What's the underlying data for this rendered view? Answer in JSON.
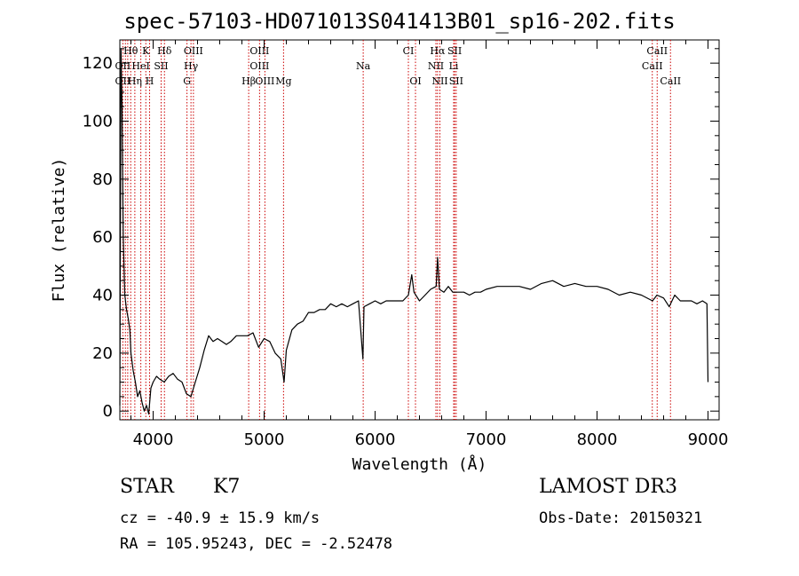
{
  "title": "spec-57103-HD071013S041413B01_sp16-202.fits",
  "chart_data": {
    "type": "line",
    "title": "spec-57103-HD071013S041413B01_sp16-202.fits",
    "xlabel": "Wavelength (Å)",
    "ylabel": "Flux (relative)",
    "xlim": [
      3700,
      9100
    ],
    "ylim": [
      -3,
      128
    ],
    "xticks": [
      4000,
      5000,
      6000,
      7000,
      8000,
      9000
    ],
    "yticks": [
      0,
      20,
      40,
      60,
      80,
      100,
      120
    ],
    "series": [
      {
        "name": "spectrum",
        "x": [
          3700,
          3710,
          3720,
          3730,
          3745,
          3760,
          3775,
          3790,
          3800,
          3820,
          3840,
          3860,
          3880,
          3900,
          3920,
          3940,
          3960,
          3980,
          4000,
          4030,
          4060,
          4100,
          4140,
          4180,
          4220,
          4260,
          4300,
          4340,
          4380,
          4420,
          4460,
          4500,
          4540,
          4580,
          4620,
          4660,
          4700,
          4750,
          4800,
          4850,
          4900,
          4950,
          5000,
          5050,
          5100,
          5150,
          5180,
          5200,
          5250,
          5300,
          5350,
          5400,
          5450,
          5500,
          5550,
          5600,
          5650,
          5700,
          5750,
          5800,
          5850,
          5890,
          5900,
          5950,
          6000,
          6050,
          6100,
          6150,
          6200,
          6250,
          6300,
          6330,
          6350,
          6400,
          6450,
          6500,
          6550,
          6563,
          6580,
          6620,
          6660,
          6700,
          6750,
          6800,
          6850,
          6900,
          6950,
          7000,
          7100,
          7200,
          7300,
          7400,
          7500,
          7600,
          7700,
          7800,
          7900,
          8000,
          8100,
          8200,
          8300,
          8400,
          8500,
          8540,
          8600,
          8650,
          8700,
          8750,
          8800,
          8850,
          8900,
          8950,
          8990,
          9000
        ],
        "values": [
          2,
          125,
          105,
          60,
          40,
          35,
          32,
          28,
          20,
          14,
          10,
          5,
          7,
          3,
          0,
          2,
          -1,
          8,
          10,
          12,
          11,
          10,
          12,
          13,
          11,
          10,
          6,
          5,
          10,
          15,
          21,
          26,
          24,
          25,
          24,
          23,
          24,
          26,
          26,
          26,
          27,
          22,
          25,
          24,
          20,
          18,
          10,
          21,
          28,
          30,
          31,
          34,
          34,
          35,
          35,
          37,
          36,
          37,
          36,
          37,
          38,
          18,
          36,
          37,
          38,
          37,
          38,
          38,
          38,
          38,
          40,
          47,
          41,
          38,
          40,
          42,
          43,
          53,
          42,
          41,
          43,
          41,
          41,
          41,
          40,
          41,
          41,
          42,
          43,
          43,
          43,
          42,
          44,
          45,
          43,
          44,
          43,
          43,
          42,
          40,
          41,
          40,
          38,
          40,
          39,
          36,
          40,
          38,
          38,
          38,
          37,
          38,
          37,
          10
        ]
      }
    ],
    "line_labels": [
      {
        "label": "Hθ",
        "wavelength": 3798,
        "row": 1
      },
      {
        "label": "K",
        "wavelength": 3934,
        "row": 1
      },
      {
        "label": "Hδ",
        "wavelength": 4102,
        "row": 1
      },
      {
        "label": "OIII",
        "wavelength": 4363,
        "row": 1
      },
      {
        "label": "OIII",
        "wavelength": 4959,
        "row": 1
      },
      {
        "label": "CI",
        "wavelength": 6300,
        "row": 1
      },
      {
        "label": "Hα",
        "wavelength": 6563,
        "row": 1
      },
      {
        "label": "SII",
        "wavelength": 6717,
        "row": 1
      },
      {
        "label": "CaII",
        "wavelength": 8542,
        "row": 1
      },
      {
        "label": "OII",
        "wavelength": 3727,
        "row": 2
      },
      {
        "label": "HeI",
        "wavelength": 3889,
        "row": 2
      },
      {
        "label": "SII",
        "wavelength": 4072,
        "row": 2
      },
      {
        "label": "Hγ",
        "wavelength": 4341,
        "row": 2
      },
      {
        "label": "OIII",
        "wavelength": 4959,
        "row": 2
      },
      {
        "label": "Na",
        "wavelength": 5893,
        "row": 2
      },
      {
        "label": "NII",
        "wavelength": 6548,
        "row": 2
      },
      {
        "label": "Li",
        "wavelength": 6708,
        "row": 2
      },
      {
        "label": "CaII",
        "wavelength": 8498,
        "row": 2
      },
      {
        "label": "OII",
        "wavelength": 3727,
        "row": 3
      },
      {
        "label": "Hη",
        "wavelength": 3835,
        "row": 3
      },
      {
        "label": "H",
        "wavelength": 3968,
        "row": 3
      },
      {
        "label": "G",
        "wavelength": 4305,
        "row": 3
      },
      {
        "label": "Hβ",
        "wavelength": 4861,
        "row": 3
      },
      {
        "label": "OIII",
        "wavelength": 5007,
        "row": 3
      },
      {
        "label": "Mg",
        "wavelength": 5175,
        "row": 3
      },
      {
        "label": "OI",
        "wavelength": 6364,
        "row": 3
      },
      {
        "label": "NII",
        "wavelength": 6584,
        "row": 3
      },
      {
        "label": "SII",
        "wavelength": 6731,
        "row": 3
      },
      {
        "label": "CaII",
        "wavelength": 8662,
        "row": 3
      }
    ],
    "marker_lines": [
      3727,
      3750,
      3771,
      3798,
      3835,
      3889,
      3934,
      3968,
      4072,
      4102,
      4305,
      4341,
      4363,
      4861,
      4959,
      5007,
      5175,
      5893,
      6300,
      6364,
      6548,
      6563,
      6584,
      6708,
      6717,
      6731,
      8498,
      8542,
      8662
    ]
  },
  "info": {
    "obj_class": "STAR",
    "subclass": "K7",
    "survey": "LAMOST DR3",
    "cz": "cz = -40.9 ± 15.9 km/s",
    "obs_date": "Obs-Date: 20150321",
    "radec": "RA = 105.95243, DEC =  -2.52478"
  },
  "colors": {
    "spectrum": "#000000",
    "marker": "#cc0000",
    "axis": "#000000"
  }
}
